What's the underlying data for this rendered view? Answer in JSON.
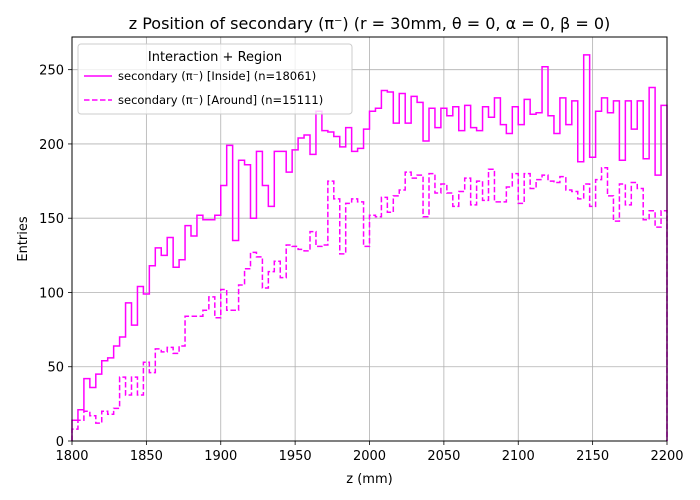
{
  "chart_data": {
    "type": "line",
    "drawstyle": "steps",
    "title": "z Position of secondary (π⁻) (r = 30mm, θ = 0, α = 0, β = 0)",
    "xlabel": "z (mm)",
    "ylabel": "Entries",
    "xlim": [
      1800,
      2200
    ],
    "ylim": [
      0,
      272
    ],
    "xticks": [
      1800,
      1850,
      1900,
      1950,
      2000,
      2050,
      2100,
      2150,
      2200
    ],
    "yticks": [
      0,
      50,
      100,
      150,
      200,
      250
    ],
    "grid": true,
    "legend": {
      "title": "Interaction + Region",
      "position": "top-left"
    },
    "bin_width": 4,
    "x": [
      1800,
      1804,
      1808,
      1812,
      1816,
      1820,
      1824,
      1828,
      1832,
      1836,
      1840,
      1844,
      1848,
      1852,
      1856,
      1860,
      1864,
      1868,
      1872,
      1876,
      1880,
      1884,
      1888,
      1892,
      1896,
      1900,
      1904,
      1908,
      1912,
      1916,
      1920,
      1924,
      1928,
      1932,
      1936,
      1940,
      1944,
      1948,
      1952,
      1956,
      1960,
      1964,
      1968,
      1972,
      1976,
      1980,
      1984,
      1988,
      1992,
      1996,
      2000,
      2004,
      2008,
      2012,
      2016,
      2020,
      2024,
      2028,
      2032,
      2036,
      2040,
      2044,
      2048,
      2052,
      2056,
      2060,
      2064,
      2068,
      2072,
      2076,
      2080,
      2084,
      2088,
      2092,
      2096,
      2100,
      2104,
      2108,
      2112,
      2116,
      2120,
      2124,
      2128,
      2132,
      2136,
      2140,
      2144,
      2148,
      2152,
      2156,
      2160,
      2164,
      2168,
      2172,
      2176,
      2180,
      2184,
      2188,
      2192,
      2196
    ],
    "series": [
      {
        "name": "secondary (π⁻) [Inside] (n=18061)",
        "color": "#ff00ff",
        "linestyle": "solid",
        "values": [
          14,
          21,
          42,
          36,
          45,
          54,
          56,
          64,
          70,
          93,
          78,
          104,
          99,
          118,
          130,
          125,
          137,
          117,
          122,
          145,
          138,
          152,
          149,
          149,
          152,
          172,
          199,
          135,
          189,
          186,
          150,
          195,
          172,
          158,
          195,
          195,
          181,
          196,
          204,
          206,
          193,
          222,
          209,
          208,
          205,
          198,
          211,
          195,
          197,
          210,
          222,
          224,
          236,
          235,
          214,
          234,
          214,
          232,
          228,
          202,
          224,
          211,
          224,
          219,
          225,
          209,
          226,
          211,
          209,
          225,
          218,
          231,
          213,
          207,
          225,
          213,
          230,
          220,
          221,
          252,
          219,
          207,
          231,
          213,
          229,
          188,
          260,
          191,
          222,
          231,
          221,
          229,
          189,
          229,
          210,
          229,
          190,
          238,
          179,
          226
        ]
      },
      {
        "name": "secondary (π⁻) [Around] (n=15111)",
        "color": "#ff00ff",
        "linestyle": "dashed",
        "values": [
          8,
          14,
          20,
          17,
          12,
          20,
          18,
          22,
          43,
          31,
          43,
          31,
          53,
          46,
          62,
          60,
          63,
          59,
          64,
          84,
          84,
          84,
          88,
          97,
          83,
          102,
          88,
          88,
          105,
          116,
          127,
          124,
          103,
          114,
          121,
          110,
          132,
          131,
          129,
          128,
          141,
          131,
          132,
          175,
          163,
          126,
          160,
          163,
          161,
          131,
          152,
          151,
          164,
          154,
          165,
          169,
          181,
          177,
          179,
          151,
          180,
          167,
          173,
          167,
          158,
          168,
          177,
          159,
          175,
          162,
          183,
          161,
          161,
          171,
          180,
          160,
          180,
          170,
          176,
          179,
          175,
          174,
          178,
          169,
          168,
          163,
          173,
          158,
          176,
          184,
          165,
          148,
          173,
          159,
          174,
          170,
          149,
          155,
          144,
          155
        ]
      }
    ]
  }
}
